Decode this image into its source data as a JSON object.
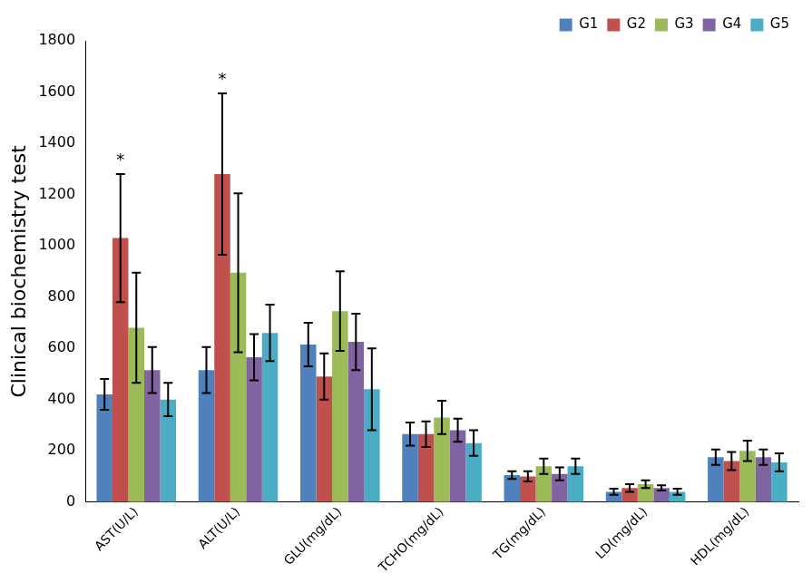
{
  "chart_data": {
    "type": "bar",
    "y_label": "Clinical biochemistry test",
    "categories": [
      "AST(U/L)",
      "ALT(U/L)",
      "GLU(mg/dL)",
      "TCHO(mg/dL)",
      "TG(mg/dL)",
      "LD(mg/dL)",
      "HDL(mg/dL)"
    ],
    "series": [
      {
        "name": "G1",
        "color": "#4f81bd",
        "values": [
          420,
          515,
          615,
          265,
          105,
          40,
          175
        ],
        "errors": [
          60,
          90,
          85,
          45,
          15,
          12,
          30
        ]
      },
      {
        "name": "G2",
        "color": "#c0504d",
        "values": [
          1030,
          1280,
          490,
          265,
          100,
          55,
          160
        ],
        "errors": [
          250,
          315,
          90,
          50,
          20,
          15,
          35
        ]
      },
      {
        "name": "G3",
        "color": "#9bbb59",
        "values": [
          680,
          895,
          745,
          330,
          140,
          70,
          200
        ],
        "errors": [
          215,
          310,
          155,
          65,
          30,
          15,
          40
        ]
      },
      {
        "name": "G4",
        "color": "#8064a2",
        "values": [
          515,
          565,
          625,
          280,
          110,
          55,
          175
        ],
        "errors": [
          90,
          90,
          110,
          45,
          25,
          10,
          30
        ]
      },
      {
        "name": "G5",
        "color": "#4bacc6",
        "values": [
          400,
          660,
          440,
          230,
          140,
          40,
          155
        ],
        "errors": [
          65,
          110,
          160,
          50,
          30,
          12,
          35
        ]
      }
    ],
    "annotations": [
      {
        "text": "*",
        "category": "AST(U/L)",
        "series": "G2"
      },
      {
        "text": "*",
        "category": "ALT(U/L)",
        "series": "G2"
      }
    ],
    "ylim": [
      0,
      1800
    ],
    "yticks": [
      0,
      200,
      400,
      600,
      800,
      1000,
      1200,
      1400,
      1600,
      1800
    ],
    "grid": false,
    "legend": "top right"
  }
}
